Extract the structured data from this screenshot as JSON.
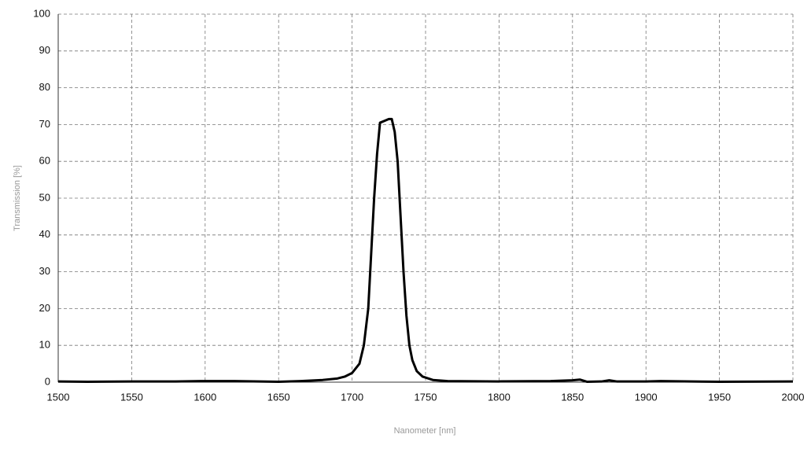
{
  "chart_data": {
    "type": "line",
    "x_label": "Nanometer [nm]",
    "y_label": "Transmission [%]",
    "xlim": [
      1500,
      2000
    ],
    "xticks": [
      1500,
      1550,
      1600,
      1650,
      1700,
      1750,
      1800,
      1850,
      1900,
      1950,
      2000
    ],
    "ylim": [
      0,
      100
    ],
    "yticks": [
      0,
      10,
      20,
      30,
      40,
      50,
      60,
      70,
      80,
      90,
      100
    ],
    "grid": true,
    "series": [
      {
        "color": "#000000",
        "x": [
          1500,
          1520,
          1550,
          1580,
          1600,
          1620,
          1650,
          1665,
          1680,
          1690,
          1695,
          1700,
          1705,
          1708,
          1711,
          1713,
          1715,
          1717,
          1719,
          1722,
          1725,
          1727,
          1729,
          1731,
          1733,
          1735,
          1737,
          1739,
          1741,
          1744,
          1748,
          1755,
          1765,
          1800,
          1835,
          1850,
          1855,
          1860,
          1870,
          1875,
          1880,
          1900,
          1910,
          1950,
          2000
        ],
        "values": [
          0.2,
          0.1,
          0.2,
          0.2,
          0.3,
          0.3,
          0.1,
          0.3,
          0.6,
          1,
          1.5,
          2.5,
          5,
          10,
          20,
          35,
          50,
          62,
          70.5,
          71,
          71.5,
          71.5,
          68,
          60,
          45,
          30,
          18,
          10,
          6,
          3,
          1.5,
          0.6,
          0.3,
          0.2,
          0.3,
          0.5,
          0.7,
          0.1,
          0.2,
          0.5,
          0.2,
          0.2,
          0.3,
          0.1,
          0.2
        ]
      }
    ]
  }
}
